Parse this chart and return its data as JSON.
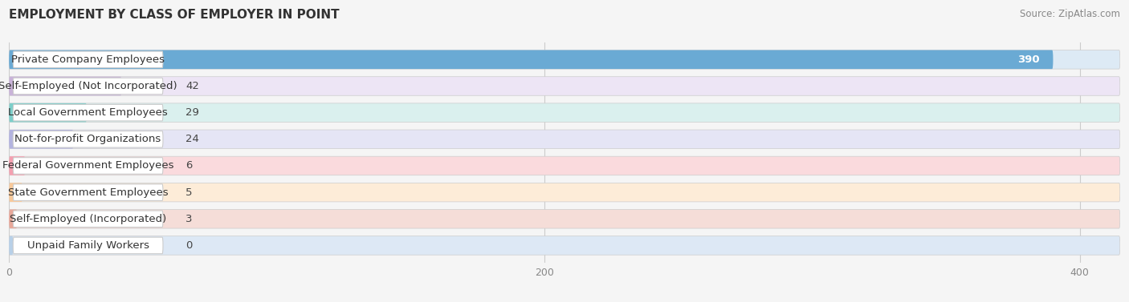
{
  "title": "EMPLOYMENT BY CLASS OF EMPLOYER IN POINT",
  "source": "Source: ZipAtlas.com",
  "categories": [
    "Private Company Employees",
    "Self-Employed (Not Incorporated)",
    "Local Government Employees",
    "Not-for-profit Organizations",
    "Federal Government Employees",
    "State Government Employees",
    "Self-Employed (Incorporated)",
    "Unpaid Family Workers"
  ],
  "values": [
    390,
    42,
    29,
    24,
    6,
    5,
    3,
    0
  ],
  "bar_colors": [
    "#6aaad4",
    "#c9b3d9",
    "#7dcfca",
    "#b3b3e0",
    "#f4a0b0",
    "#f9c99a",
    "#e8a89a",
    "#b8d0e8"
  ],
  "bar_bg_colors": [
    "#ddeaf5",
    "#ede5f5",
    "#daf0ee",
    "#e5e5f5",
    "#fadadd",
    "#fdecd8",
    "#f5ddd8",
    "#dde8f5"
  ],
  "xlim": [
    0,
    415
  ],
  "xticks": [
    0,
    200,
    400
  ],
  "title_fontsize": 11,
  "label_fontsize": 9.5,
  "value_fontsize": 9.5,
  "background_color": "#f5f5f5"
}
